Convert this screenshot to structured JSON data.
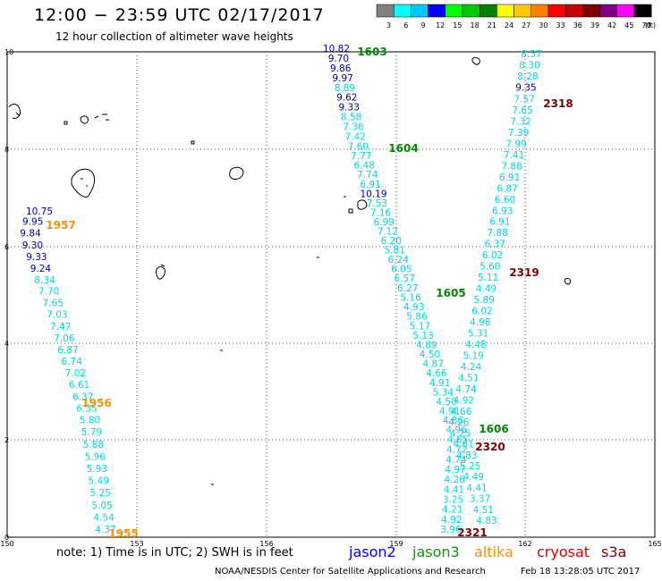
{
  "title": "12:00 − 23:59 UTC 02/17/2017",
  "subtitle": "12 hour collection of altimeter wave heights",
  "colorbar": {
    "unit": "(ft)",
    "ticks": [
      "3",
      "6",
      "9",
      "12",
      "15",
      "18",
      "21",
      "24",
      "27",
      "30",
      "33",
      "36",
      "39",
      "42",
      "45",
      "70"
    ],
    "colors": [
      "#808080",
      "#00ffff",
      "#00c8ff",
      "#0000ff",
      "#00ff00",
      "#00c800",
      "#008000",
      "#ffff00",
      "#ffc800",
      "#ff8000",
      "#ff0000",
      "#c80000",
      "#800000",
      "#800080",
      "#ff00ff",
      "#000000"
    ]
  },
  "axes": {
    "x_ticks": [
      "150",
      "153",
      "156",
      "159",
      "162",
      "165"
    ],
    "y_ticks": [
      "0",
      "2",
      "4",
      "6",
      "8",
      "10"
    ]
  },
  "text_colors": {
    "light": "#00d8e8",
    "blue": "#0000b0",
    "green": "#008800",
    "orange": "#ff9000",
    "darkred": "#800000"
  },
  "tracks": [
    {
      "name": "track-1955",
      "labels": [
        [
          "10.75",
          "blue"
        ],
        [
          "9.95",
          "blue"
        ],
        [
          "9.84",
          "blue"
        ],
        [
          "9.30",
          "blue"
        ],
        [
          "9.33",
          "blue"
        ],
        [
          "9.24",
          "blue"
        ],
        [
          "8.34",
          "light"
        ],
        [
          "7.70",
          "light"
        ],
        [
          "7.65",
          "light"
        ],
        [
          "7.03",
          "light"
        ],
        [
          "7.47",
          "light"
        ],
        [
          "7.06",
          "light"
        ],
        [
          "6.87",
          "light"
        ],
        [
          "6.74",
          "light"
        ],
        [
          "7.02",
          "light"
        ],
        [
          "6.61",
          "light"
        ],
        [
          "6.37",
          "light"
        ],
        [
          "6.35",
          "light"
        ],
        [
          "5.80",
          "light"
        ],
        [
          "5.79",
          "light"
        ],
        [
          "5.88",
          "light"
        ],
        [
          "5.96",
          "light"
        ],
        [
          "5.93",
          "light"
        ],
        [
          "5.49",
          "light"
        ],
        [
          "5.25",
          "light"
        ],
        [
          "5.05",
          "light"
        ],
        [
          "4.54",
          "light"
        ],
        [
          "4.37",
          "light"
        ]
      ]
    },
    {
      "name": "track-1603",
      "labels": [
        [
          "10.82",
          "blue"
        ],
        [
          "9.70",
          "blue"
        ],
        [
          "9.86",
          "blue"
        ],
        [
          "9.97",
          "blue"
        ],
        [
          "8.89",
          "light"
        ],
        [
          "9.62",
          "blue"
        ],
        [
          "9.33",
          "blue"
        ],
        [
          "8.58",
          "light"
        ],
        [
          "7.36",
          "light"
        ],
        [
          "7.42",
          "light"
        ],
        [
          "7.60",
          "light"
        ],
        [
          "7.77",
          "light"
        ],
        [
          "6.48",
          "light"
        ],
        [
          "7.74",
          "light"
        ],
        [
          "6.91",
          "light"
        ],
        [
          "10.19",
          "blue"
        ],
        [
          "7.53",
          "light"
        ],
        [
          "7.16",
          "light"
        ],
        [
          "6.99",
          "light"
        ],
        [
          "7.12",
          "light"
        ],
        [
          "6.20",
          "light"
        ],
        [
          "5.81",
          "light"
        ],
        [
          "6.24",
          "light"
        ],
        [
          "6.05",
          "light"
        ],
        [
          "6.57",
          "light"
        ],
        [
          "6.27",
          "light"
        ],
        [
          "5.16",
          "light"
        ],
        [
          "4.93",
          "light"
        ],
        [
          "5.86",
          "light"
        ],
        [
          "5.17",
          "light"
        ],
        [
          "5.13",
          "light"
        ],
        [
          "4.89",
          "light"
        ],
        [
          "4.50",
          "light"
        ],
        [
          "4.87",
          "light"
        ],
        [
          "4.66",
          "light"
        ],
        [
          "4.91",
          "light"
        ],
        [
          "5.34",
          "light"
        ],
        [
          "4.50",
          "light"
        ],
        [
          "4.91",
          "light"
        ],
        [
          "4.86",
          "light"
        ],
        [
          "4.96",
          "light"
        ],
        [
          "4.65",
          "light"
        ],
        [
          "4.72",
          "light"
        ],
        [
          "4.74",
          "light"
        ],
        [
          "4.97",
          "light"
        ],
        [
          "4.26",
          "light"
        ],
        [
          "4.41",
          "light"
        ],
        [
          "3.25",
          "light"
        ],
        [
          "4.21",
          "light"
        ],
        [
          "4.92",
          "light"
        ],
        [
          "3.96",
          "light"
        ]
      ]
    },
    {
      "name": "track-2318",
      "labels": [
        [
          "8.57",
          "light"
        ],
        [
          "8.30",
          "light"
        ],
        [
          "8.28",
          "light"
        ],
        [
          "9.35",
          "blue"
        ],
        [
          "7.57",
          "light"
        ],
        [
          "7.65",
          "light"
        ],
        [
          "7.32",
          "light"
        ],
        [
          "7.39",
          "light"
        ],
        [
          "7.99",
          "light"
        ],
        [
          "7.41",
          "light"
        ],
        [
          "7.88",
          "light"
        ],
        [
          "6.91",
          "light"
        ],
        [
          "6.87",
          "light"
        ],
        [
          "6.60",
          "light"
        ],
        [
          "6.93",
          "light"
        ],
        [
          "6.91",
          "light"
        ],
        [
          "7.88",
          "light"
        ],
        [
          "6.37",
          "light"
        ],
        [
          "6.02",
          "light"
        ],
        [
          "5.60",
          "light"
        ],
        [
          "5.11",
          "light"
        ],
        [
          "4.49",
          "light"
        ],
        [
          "5.89",
          "light"
        ],
        [
          "6.02",
          "light"
        ],
        [
          "4.98",
          "light"
        ],
        [
          "5.31",
          "light"
        ],
        [
          "4.48",
          "light"
        ],
        [
          "5.19",
          "light"
        ],
        [
          "4.24",
          "light"
        ],
        [
          "4.51",
          "light"
        ],
        [
          "4.74",
          "light"
        ],
        [
          "4.92",
          "light"
        ],
        [
          "4.66",
          "light"
        ],
        [
          "4.26",
          "light"
        ],
        [
          "4.25",
          "light"
        ],
        [
          "4.61",
          "light"
        ],
        [
          "4.83",
          "light"
        ],
        [
          "5.25",
          "light"
        ],
        [
          "4.49",
          "light"
        ],
        [
          "4.41",
          "light"
        ],
        [
          "3.37",
          "light"
        ],
        [
          "4.51",
          "light"
        ],
        [
          "4.83",
          "light"
        ]
      ]
    }
  ],
  "pass_labels": [
    {
      "text": "1603",
      "color": "green"
    },
    {
      "text": "1604",
      "color": "green"
    },
    {
      "text": "1605",
      "color": "green"
    },
    {
      "text": "1606",
      "color": "green"
    },
    {
      "text": "1955",
      "color": "orange"
    },
    {
      "text": "1956",
      "color": "orange"
    },
    {
      "text": "1957",
      "color": "orange"
    },
    {
      "text": "2318",
      "color": "darkred"
    },
    {
      "text": "2319",
      "color": "darkred"
    },
    {
      "text": "2320",
      "color": "darkred"
    },
    {
      "text": "2321",
      "color": "darkred"
    }
  ],
  "footer": {
    "note": "note:  1) Time is in UTC;  2) SWH is in feet",
    "legend": [
      {
        "text": "jason2",
        "color": "#0000ff"
      },
      {
        "text": "jason3",
        "color": "#00a000"
      },
      {
        "text": "altika",
        "color": "#ff9000"
      },
      {
        "text": "cryosat",
        "color": "#e00000"
      },
      {
        "text": "s3a",
        "color": "#800000"
      }
    ],
    "credit": "NOAA/NESDIS Center for Satellite Applications and Research",
    "stamp": "Feb 18 13:28:05 UTC 2017"
  }
}
